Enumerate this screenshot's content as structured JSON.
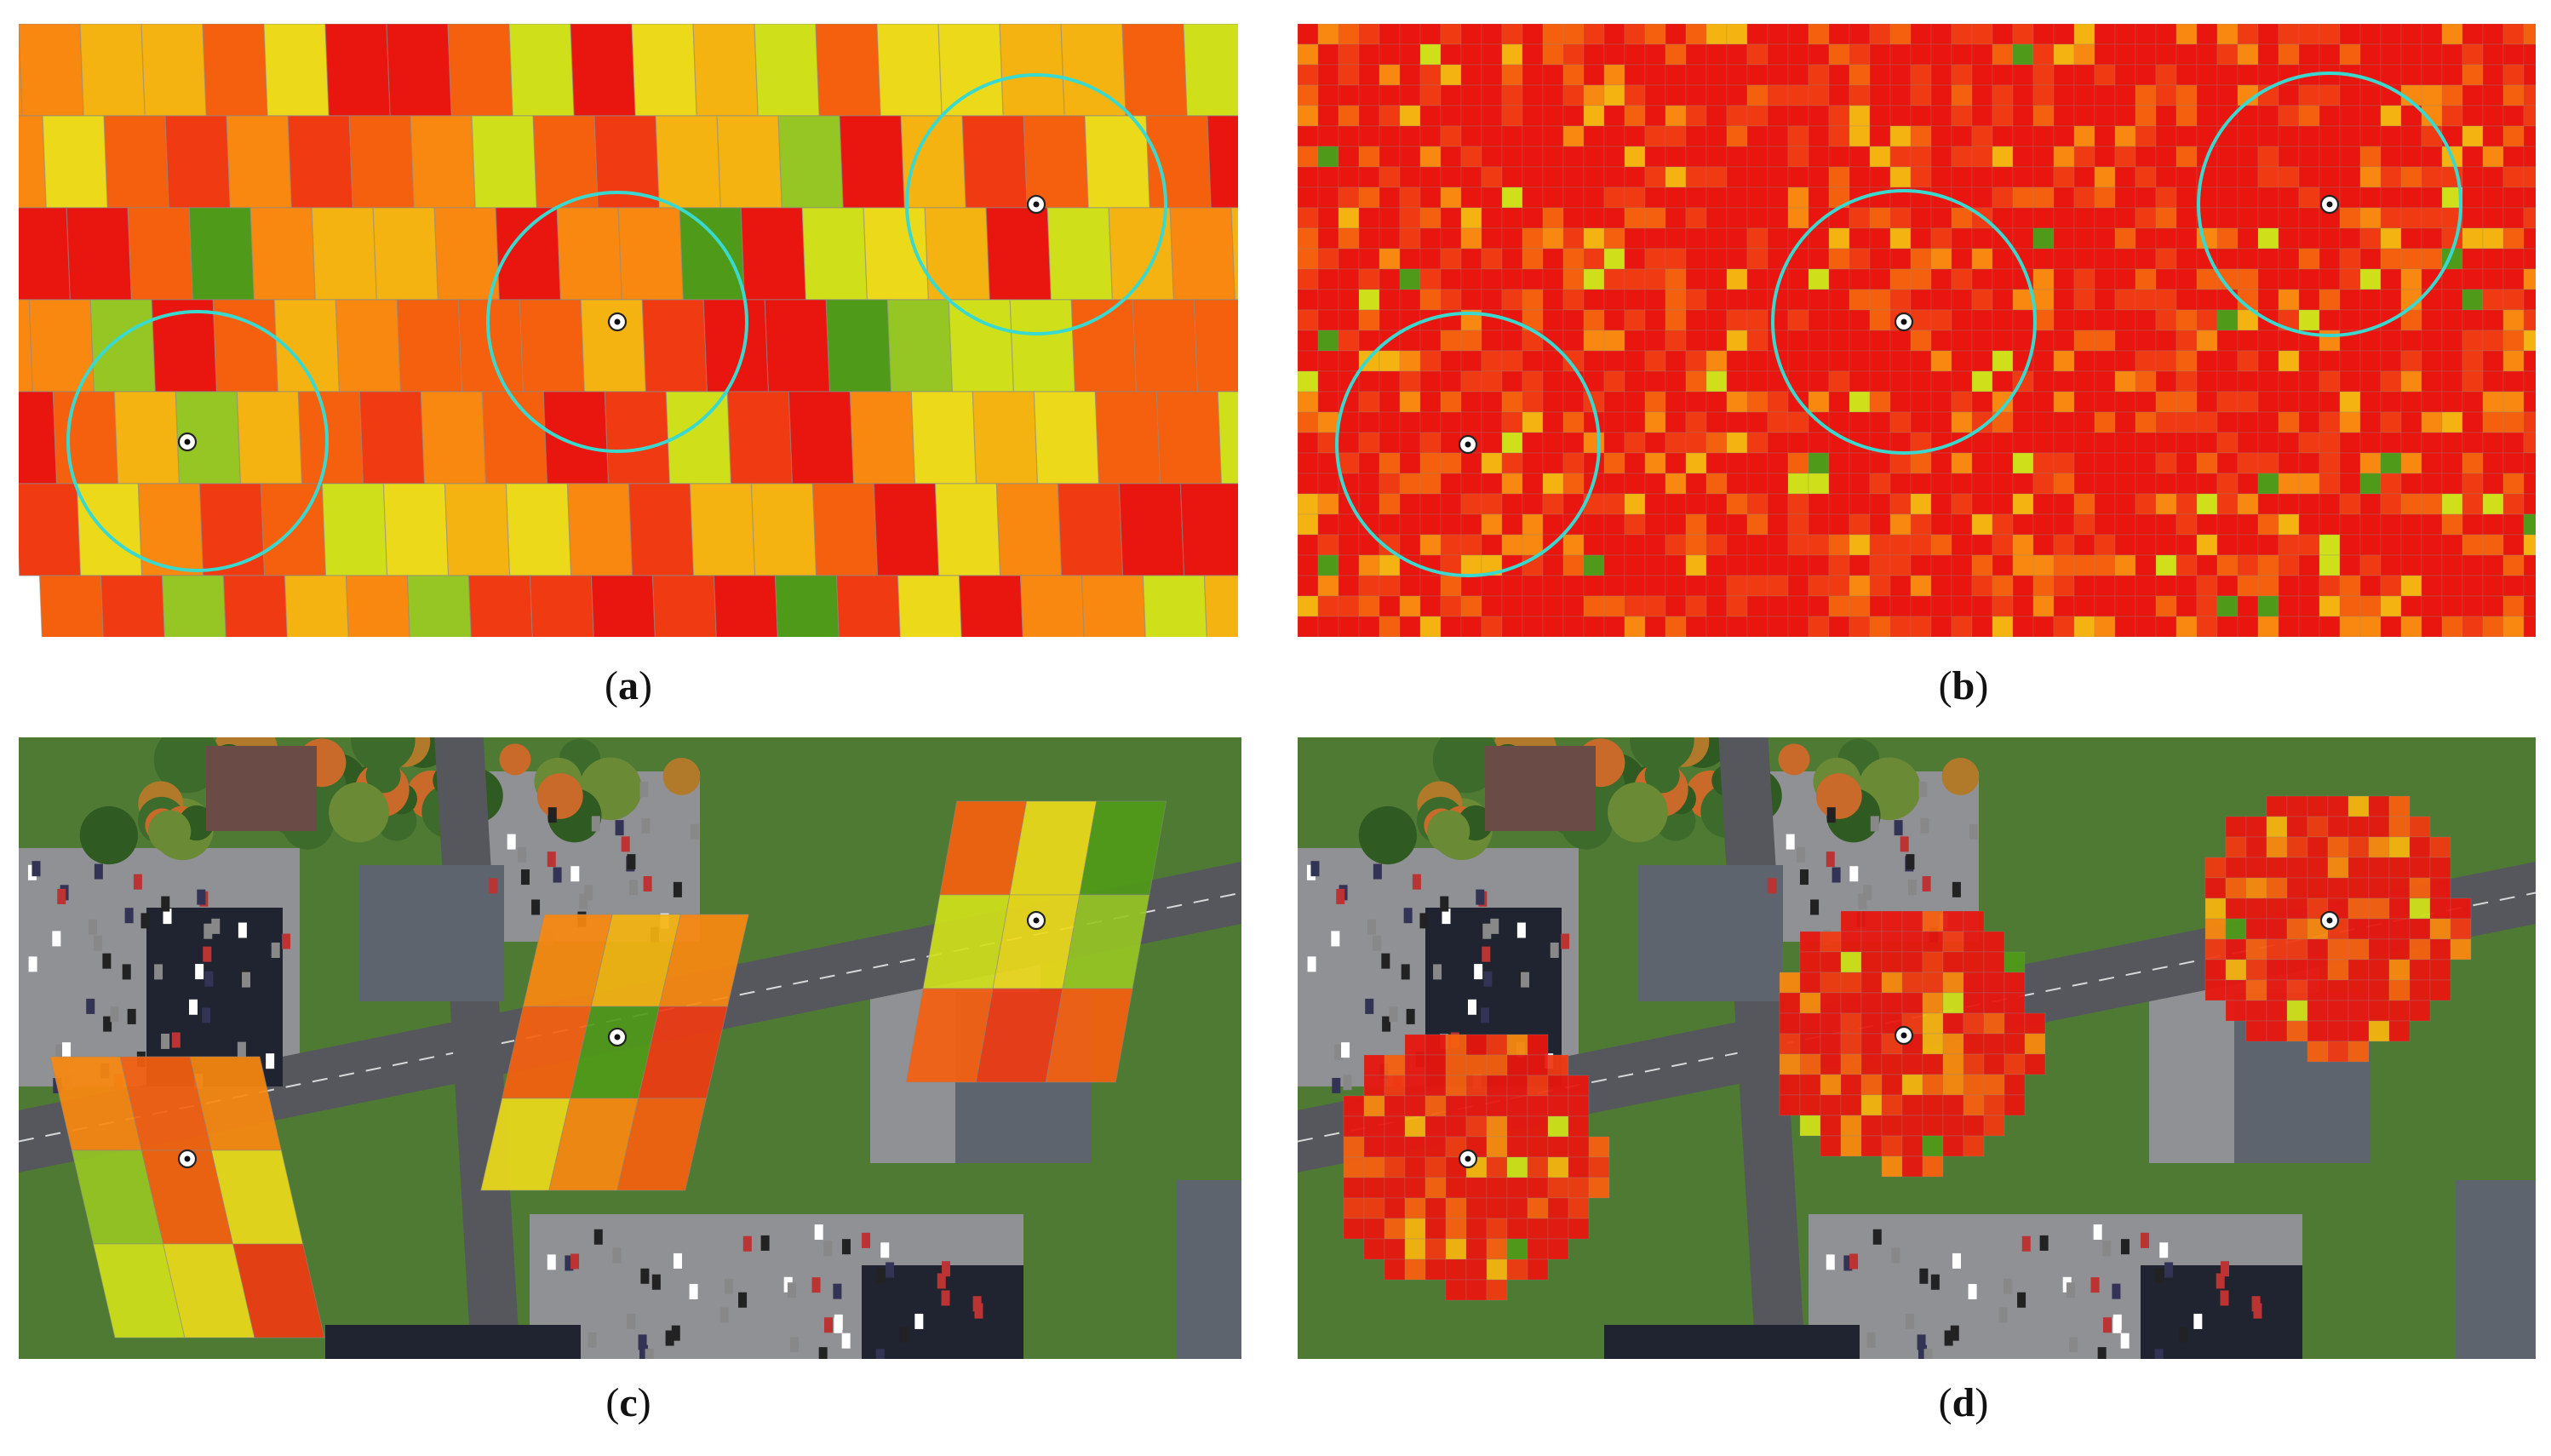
{
  "captions": {
    "a": "a",
    "b": "b",
    "c": "c",
    "d": "d"
  },
  "colors": {
    "heat_scale": [
      "#e8160f",
      "#f03a12",
      "#f5600f",
      "#f8880f",
      "#f4b310",
      "#ecd91a",
      "#cfe01a",
      "#96c623",
      "#4f9a18"
    ],
    "circle": "#39d9cf",
    "grid_line": "#8a8a8a",
    "road": "#55575c",
    "grass": "#4f7a34",
    "parking": "#8f9194",
    "roof_dark": "#1f2430",
    "roof_gray": "#5d646d",
    "roof_brown": "#6b4b45"
  },
  "panels": [
    {
      "id": "a",
      "kind": "coarse heat grid",
      "basemap": false,
      "markers": 3,
      "circles": 3
    },
    {
      "id": "b",
      "kind": "fine heat grid",
      "basemap": false,
      "markers": 3,
      "circles": 3
    },
    {
      "id": "c",
      "kind": "coarse heat patches over aerial imagery",
      "basemap": true,
      "markers": 3,
      "circles": 0
    },
    {
      "id": "d",
      "kind": "fine heat patches over aerial imagery",
      "basemap": true,
      "markers": 3,
      "circles": 0
    }
  ]
}
